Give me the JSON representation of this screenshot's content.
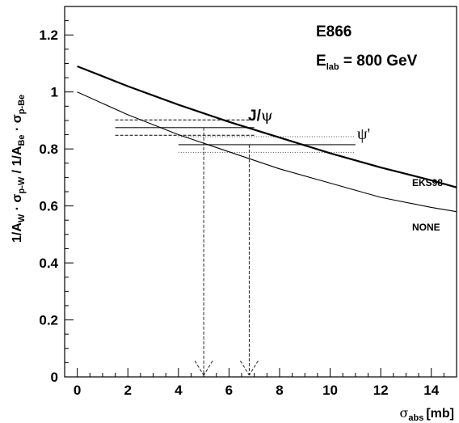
{
  "chart_data": {
    "type": "line",
    "xlabel": {
      "base": "σ",
      "sub": "abs",
      "unit": "[mb]"
    },
    "ylabel": {
      "p1": "1/A",
      "s1": "W",
      "p2": " · σ",
      "s2": "p-W",
      "p3": "  /  1/A",
      "s3": "Be",
      "p4": " · σ",
      "s4": "p-Be"
    },
    "xlim": [
      -0.5,
      15
    ],
    "ylim": [
      0,
      1.3
    ],
    "xticks": [
      "0",
      "2",
      "4",
      "6",
      "8",
      "10",
      "12",
      "14"
    ],
    "yticks": [
      "0",
      "0.2",
      "0.4",
      "0.6",
      "0.8",
      "1",
      "1.2"
    ],
    "series": [
      {
        "name": "EKS98",
        "x": [
          0,
          2,
          4,
          6,
          8,
          10,
          12,
          14,
          15
        ],
        "y": [
          1.09,
          1.02,
          0.955,
          0.895,
          0.84,
          0.785,
          0.735,
          0.69,
          0.665
        ]
      },
      {
        "name": "NONE",
        "x": [
          0,
          2,
          4,
          6,
          8,
          10,
          12,
          14,
          15
        ],
        "y": [
          1.0,
          0.92,
          0.85,
          0.79,
          0.73,
          0.68,
          0.63,
          0.595,
          0.58
        ]
      }
    ],
    "measurements": [
      {
        "name": "J/ψ",
        "value": 0.875,
        "band": [
          0.848,
          0.902
        ],
        "x_range": [
          1.5,
          7.0
        ],
        "sigma_abs": 5.0
      },
      {
        "name": "ψ'",
        "value": 0.815,
        "band": [
          0.788,
          0.843
        ],
        "x_range": [
          4.0,
          11.0
        ],
        "sigma_abs": 6.8
      }
    ],
    "annotations": {
      "experiment": "E866",
      "energy": {
        "base": "E",
        "sub": "lab",
        "rest": " = 800 GeV"
      },
      "jpsi_label": {
        "base": "J/",
        "psi": "ψ"
      },
      "psiprime_label": "ψ'",
      "curve_label_1": "EKS98",
      "curve_label_2": "NONE"
    }
  }
}
